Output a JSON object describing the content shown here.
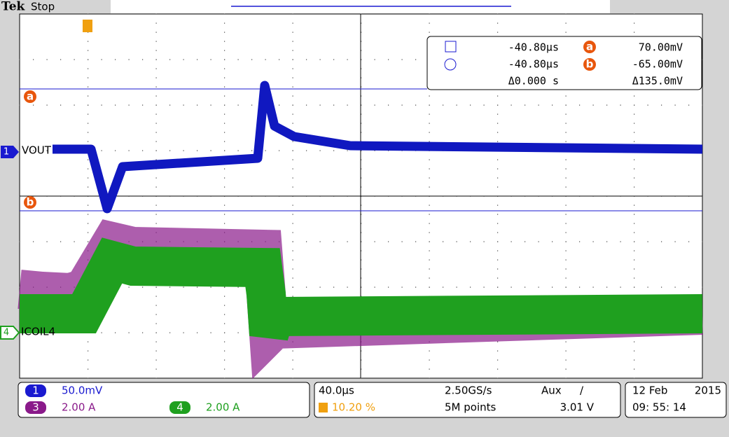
{
  "header": {
    "brand": "Tek",
    "status": "Stop"
  },
  "cursors": {
    "a_marker": "a",
    "b_marker": "b",
    "rows": [
      [
        "-40.80µs",
        "70.00mV"
      ],
      [
        "-40.80µs",
        "-65.00mV"
      ],
      [
        "Δ0.000 s",
        "Δ135.0mV"
      ]
    ]
  },
  "traces": [
    {
      "marker": "1",
      "label": "VOUT"
    },
    {
      "marker": "4",
      "label": "ICOIL4"
    }
  ],
  "channels": [
    {
      "marker": "1",
      "scale": "50.0mV"
    },
    {
      "marker": "3",
      "scale": "2.00 A"
    },
    {
      "marker": "4",
      "scale": "2.00 A"
    }
  ],
  "timebase": {
    "scale": "40.0µs",
    "rate": "2.50GS/s",
    "source": "Aux",
    "slope": "/",
    "position": "10.20 %",
    "length": "5M points",
    "level": "3.01 V"
  },
  "datetime": {
    "date": "12 Feb",
    "year": "2015",
    "time": "09: 55: 14"
  }
}
